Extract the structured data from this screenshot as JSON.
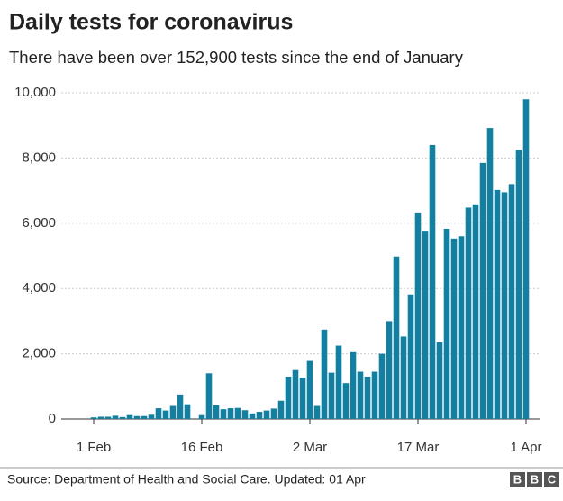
{
  "chart_data": {
    "type": "bar",
    "title": "Daily tests for coronavirus",
    "subtitle": "There have been over 152,900 tests since the end of January",
    "categories": [
      null,
      null,
      null,
      null,
      "1 Feb",
      null,
      null,
      null,
      null,
      null,
      null,
      null,
      null,
      null,
      null,
      null,
      null,
      null,
      null,
      "16 Feb",
      null,
      null,
      null,
      null,
      null,
      null,
      null,
      null,
      null,
      null,
      null,
      null,
      null,
      null,
      "2 Mar",
      null,
      null,
      null,
      null,
      null,
      null,
      null,
      null,
      null,
      null,
      null,
      null,
      null,
      null,
      "17 Mar",
      null,
      null,
      null,
      null,
      null,
      null,
      null,
      null,
      null,
      null,
      null,
      null,
      null,
      null,
      "1 Apr"
    ],
    "values": [
      0,
      0,
      0,
      0,
      50,
      70,
      70,
      100,
      60,
      120,
      90,
      90,
      130,
      330,
      260,
      400,
      750,
      450,
      0,
      120,
      1400,
      420,
      300,
      330,
      340,
      270,
      170,
      220,
      260,
      320,
      560,
      1300,
      1500,
      1270,
      1780,
      400,
      2740,
      1420,
      2250,
      1100,
      2050,
      1450,
      1300,
      1450,
      2000,
      3000,
      4980,
      2530,
      3820,
      6330,
      5770,
      8400,
      2350,
      5830,
      5530,
      5600,
      6480,
      6580,
      7850,
      8920,
      7020,
      6950,
      7200,
      8250,
      9800
    ],
    "color": "#1380a1",
    "ylim": [
      0,
      10000
    ],
    "yticks": [
      0,
      {
        "value": 2000,
        "label": "2,000"
      },
      {
        "value": 4000,
        "label": "4,000"
      },
      {
        "value": 6000,
        "label": "6,000"
      },
      {
        "value": 8000,
        "label": "8,000"
      },
      {
        "value": 10000,
        "label": "10,000"
      }
    ],
    "grid": true,
    "source": "Source: Department of Health and Social Care. Updated: 01 Apr",
    "logo": [
      "B",
      "B",
      "C"
    ]
  }
}
